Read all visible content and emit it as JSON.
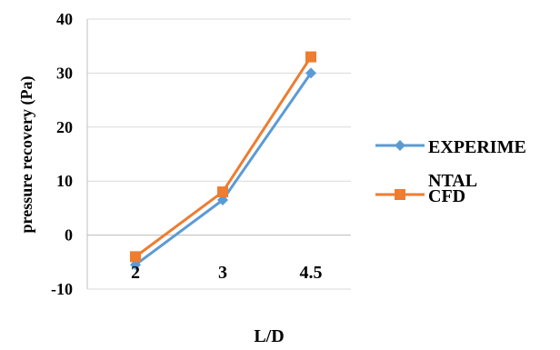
{
  "chart_data": {
    "type": "line",
    "title": "",
    "xlabel": "L/D",
    "ylabel": "pressure recovery (Pa)",
    "categories": [
      "2",
      "3",
      "4.5"
    ],
    "ylim": [
      -10,
      40
    ],
    "yticks": [
      -10,
      0,
      10,
      20,
      30,
      40
    ],
    "grid": true,
    "legend_position": "right",
    "series": [
      {
        "name": "EXPERIME NTAL",
        "legend_lines": [
          "EXPERIME",
          "NTAL"
        ],
        "values": [
          -5.5,
          6.5,
          30
        ],
        "color": "#5B9BD5",
        "marker": "diamond"
      },
      {
        "name": "CFD",
        "legend_lines": [
          "CFD"
        ],
        "values": [
          -4,
          8,
          33
        ],
        "color": "#ED7D31",
        "marker": "square"
      }
    ]
  }
}
